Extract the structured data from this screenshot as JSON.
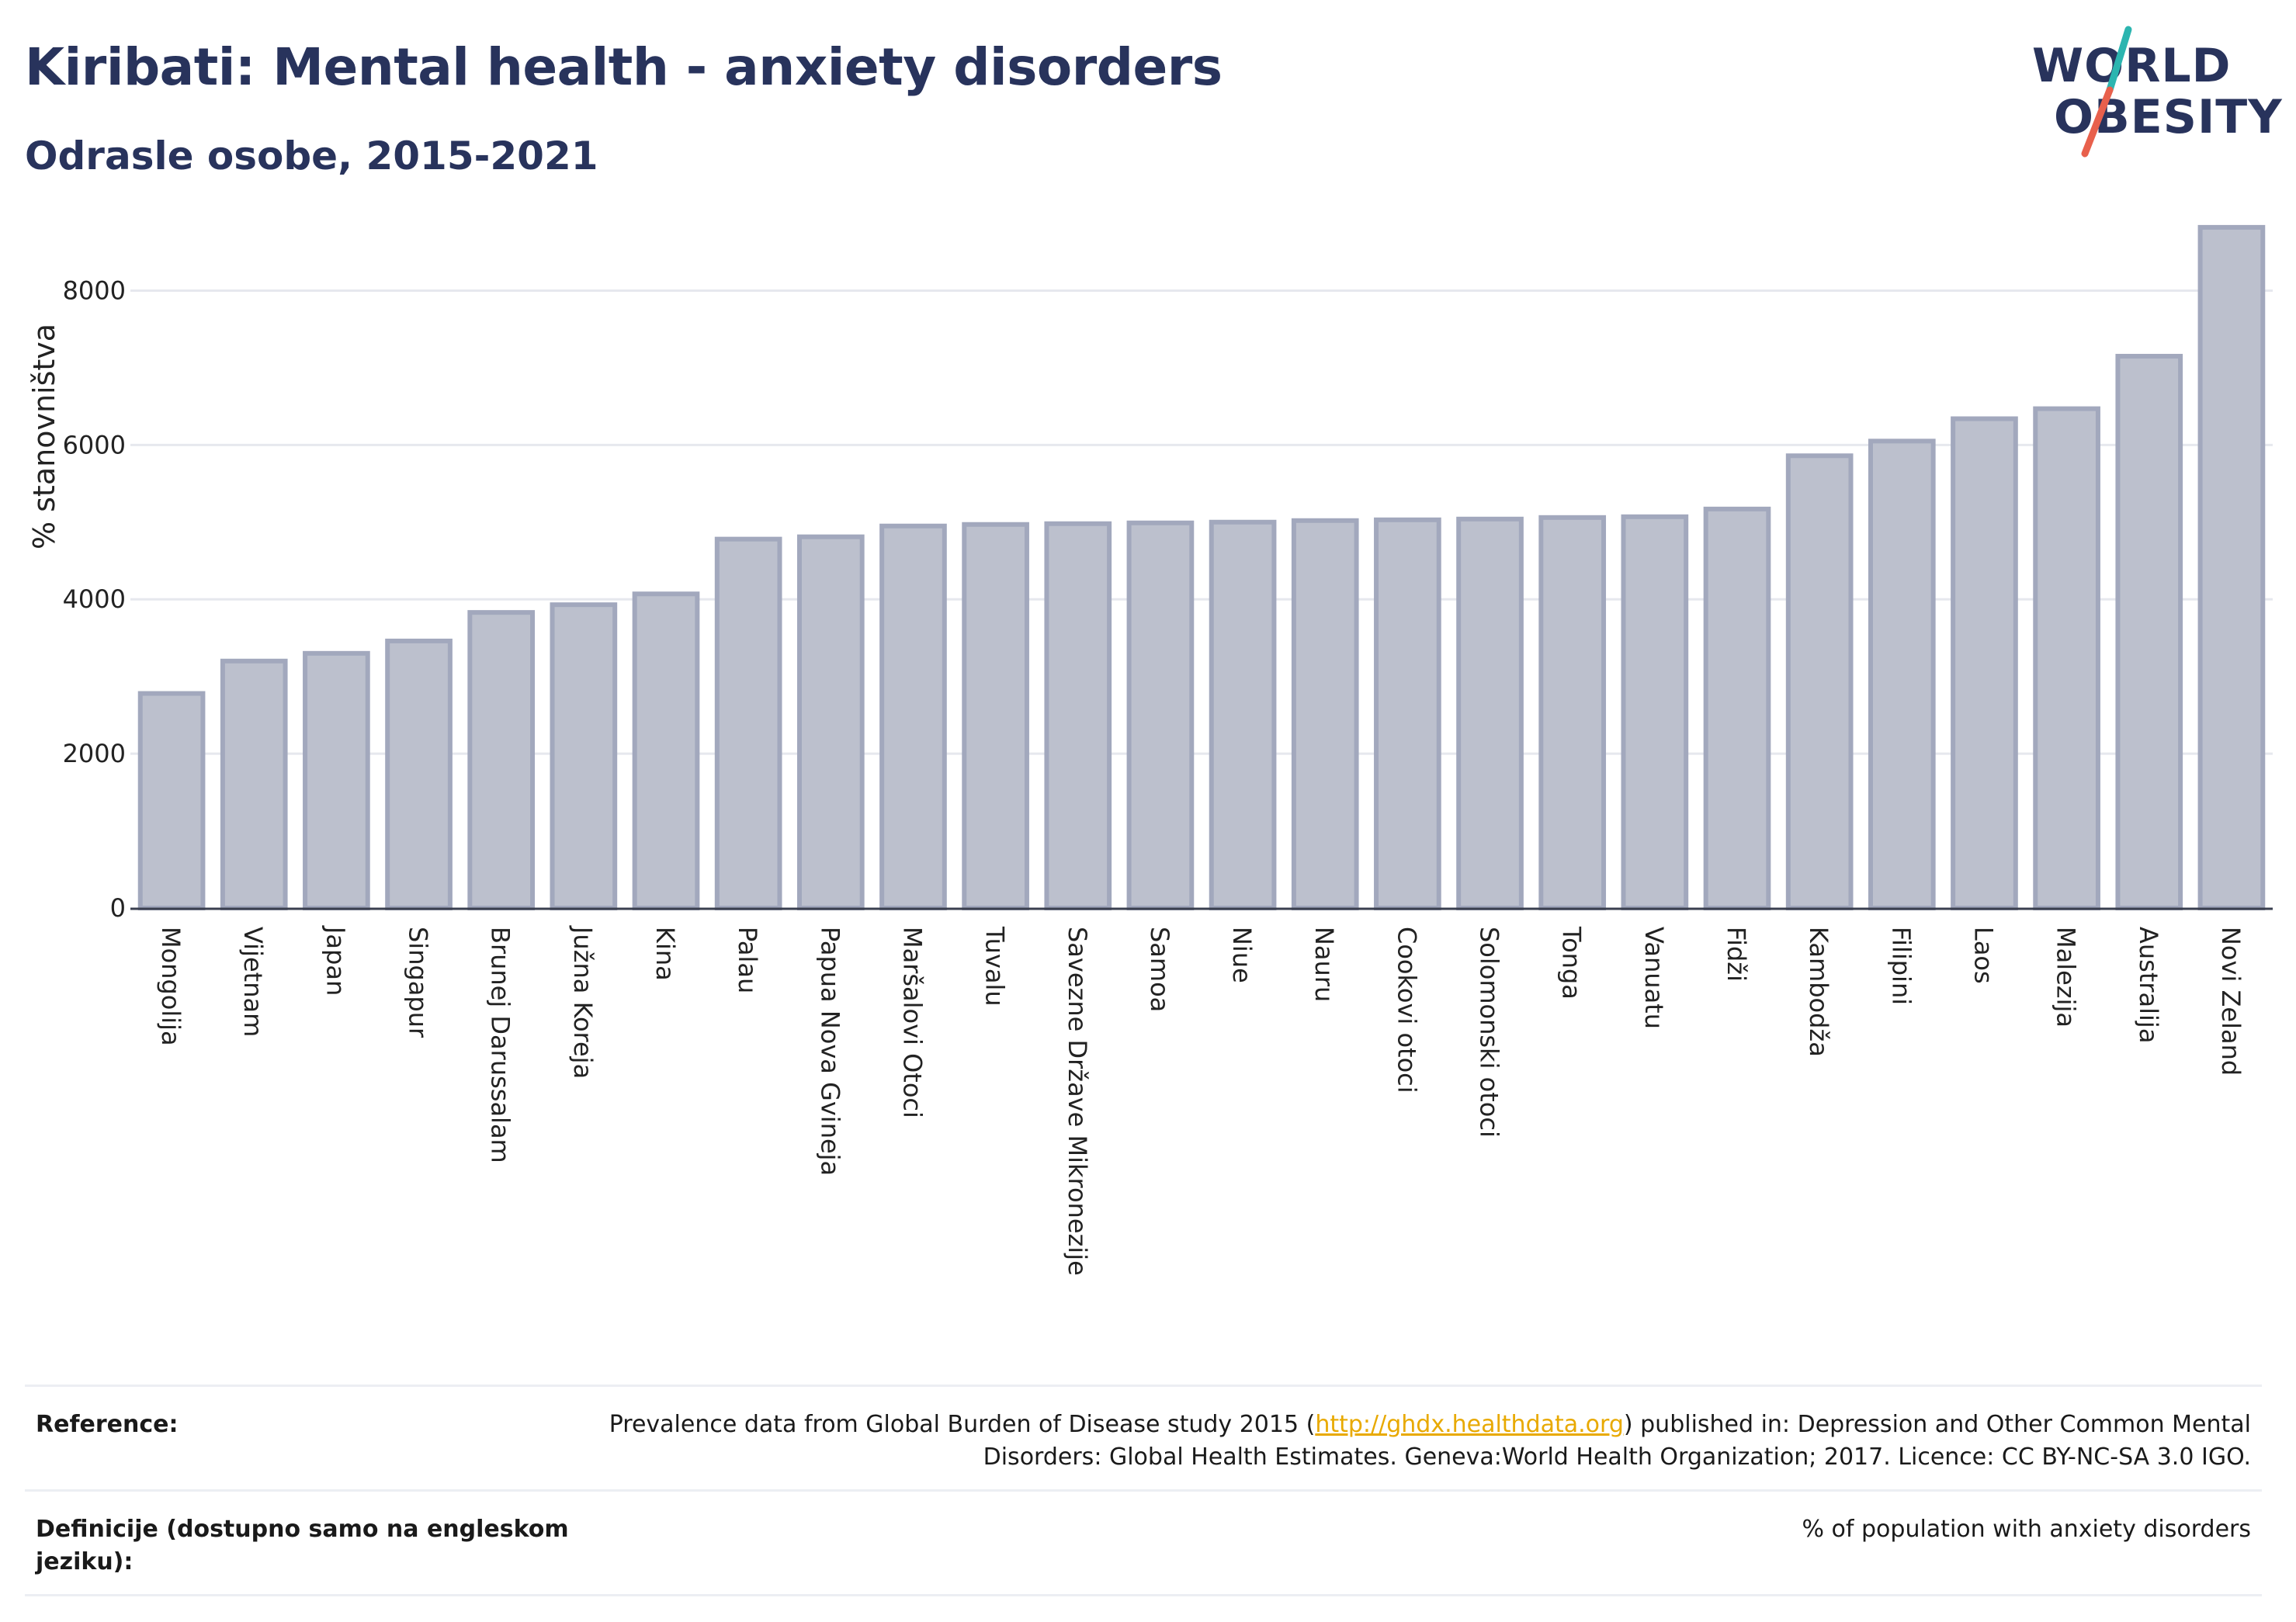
{
  "header": {
    "title": "Kiribati: Mental health - anxiety disorders",
    "subtitle": "Odrasle osobe, 2015-2021"
  },
  "logo": {
    "line1": "WORLD",
    "line2": "OBESITY",
    "slash_colors": [
      "#2cb5b0",
      "#e8604c"
    ]
  },
  "chart_data": {
    "type": "bar",
    "title": "Kiribati: Mental health - anxiety disorders",
    "subtitle": "Odrasle osobe, 2015-2021",
    "ylabel": "% stanovništva",
    "xlabel": "",
    "ylim": [
      0,
      9000
    ],
    "yticks": [
      0,
      2000,
      4000,
      6000,
      8000
    ],
    "grid": true,
    "bar_color": "#bcc0cd",
    "bar_edge_color": "#a2a8bd",
    "categories": [
      "Mongolija",
      "Vijetnam",
      "Japan",
      "Singapur",
      "Brunej Darussalam",
      "Južna Koreja",
      "Kina",
      "Palau",
      "Papua Nova Gvineja",
      "Maršalovi Otoci",
      "Tuvalu",
      "Savezne Države Mikronezije",
      "Samoa",
      "Niue",
      "Nauru",
      "Cookovi otoci",
      "Solomonski otoci",
      "Tonga",
      "Vanuatu",
      "Fidži",
      "Kambodža",
      "Filipini",
      "Laos",
      "Malezija",
      "Australija",
      "Novi Zeland"
    ],
    "values": [
      2780,
      3200,
      3300,
      3460,
      3830,
      3930,
      4070,
      4780,
      4810,
      4950,
      4970,
      4980,
      4990,
      5000,
      5020,
      5030,
      5040,
      5060,
      5070,
      5170,
      5860,
      6050,
      6340,
      6470,
      7150,
      8820
    ]
  },
  "footer": {
    "reference_label": "Reference:",
    "reference_text_before": "Prevalence data from Global Burden of Disease study 2015 (",
    "reference_link": "http://ghdx.healthdata.org",
    "reference_text_after": ") published in: Depression and Other Common Mental Disorders: Global Health Estimates. Geneva:World Health Organization; 2017. Licence: CC BY-NC-SA 3.0 IGO.",
    "definition_label": "Definicije (dostupno samo na engleskom jeziku):",
    "definition_text": "% of population with anxiety disorders"
  }
}
